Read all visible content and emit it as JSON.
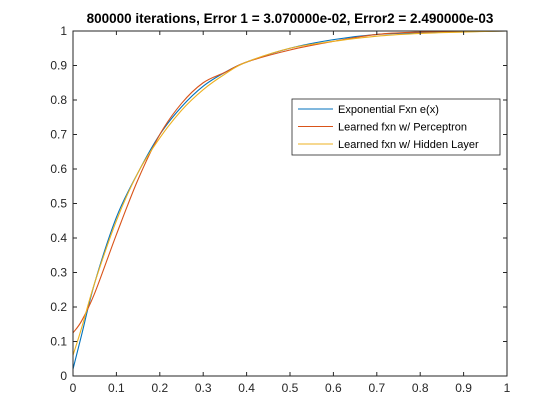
{
  "chart_data": {
    "type": "line",
    "title": "800000 iterations, Error 1 = 3.070000e-02, Error2 = 2.490000e-03",
    "xlabel": "",
    "ylabel": "",
    "xlim": [
      0,
      1
    ],
    "ylim": [
      0,
      1
    ],
    "xticks": [
      "0",
      "0.1",
      "0.2",
      "0.3",
      "0.4",
      "0.5",
      "0.6",
      "0.7",
      "0.8",
      "0.9",
      "1"
    ],
    "yticks": [
      "0",
      "0.1",
      "0.2",
      "0.3",
      "0.4",
      "0.5",
      "0.6",
      "0.7",
      "0.8",
      "0.9",
      "1"
    ],
    "grid": false,
    "legend_position": "upper-right",
    "series": [
      {
        "name": "Exponential Fxn e(x)",
        "color": "#0072BD",
        "x": [
          0,
          0.02,
          0.05,
          0.1,
          0.15,
          0.2,
          0.25,
          0.3,
          0.35,
          0.4,
          0.5,
          0.6,
          0.7,
          0.8,
          0.9,
          1.0
        ],
        "y": [
          0.02,
          0.12,
          0.27,
          0.46,
          0.59,
          0.7,
          0.78,
          0.84,
          0.88,
          0.91,
          0.95,
          0.975,
          0.99,
          0.995,
          0.998,
          1.0
        ]
      },
      {
        "name": "Learned fxn w/ Perceptron",
        "color": "#D95319",
        "x": [
          0,
          0.02,
          0.05,
          0.1,
          0.15,
          0.2,
          0.25,
          0.3,
          0.35,
          0.4,
          0.5,
          0.6,
          0.7,
          0.8,
          0.9,
          1.0
        ],
        "y": [
          0.125,
          0.16,
          0.24,
          0.41,
          0.57,
          0.7,
          0.79,
          0.85,
          0.88,
          0.91,
          0.945,
          0.97,
          0.99,
          0.997,
          0.999,
          1.0
        ]
      },
      {
        "name": "Learned fxn w/ Hidden Layer",
        "color": "#EDB120",
        "x": [
          0,
          0.02,
          0.05,
          0.1,
          0.15,
          0.2,
          0.25,
          0.3,
          0.35,
          0.4,
          0.5,
          0.6,
          0.7,
          0.8,
          0.9,
          1.0
        ],
        "y": [
          0.06,
          0.14,
          0.27,
          0.45,
          0.59,
          0.69,
          0.77,
          0.83,
          0.875,
          0.91,
          0.95,
          0.97,
          0.985,
          0.993,
          0.997,
          1.0
        ]
      }
    ]
  }
}
